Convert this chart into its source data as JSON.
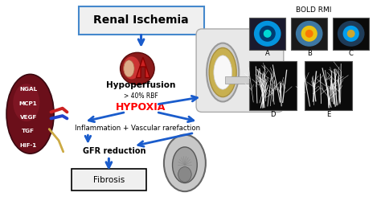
{
  "title": "Renal Ischemia",
  "bold_rmi_label": "BOLD RMI",
  "hypoperfusion": "Hypoperfusion",
  "rbf_text": "> 40% RBF",
  "hypoxia": "HYPOXIA",
  "inflammation": "Inflammation + Vascular rarefaction",
  "gfr": "GFR reduction",
  "fibrosis": "Fibrosis",
  "kidney_labels": [
    "NGAL",
    "MCP1",
    "VEGF",
    "TGF",
    "HIF-1"
  ],
  "img_labels_top": [
    "A",
    "B",
    "C"
  ],
  "img_labels_bot": [
    "D",
    "E"
  ],
  "bg_color": "#ffffff",
  "arrow_color": "#1a5ccc",
  "title_box_color": "#f0f0f0",
  "hypoxia_color": "#ff0000",
  "kidney_bg": "#7a1020",
  "fibrosis_box_color": "#f0f0f0"
}
